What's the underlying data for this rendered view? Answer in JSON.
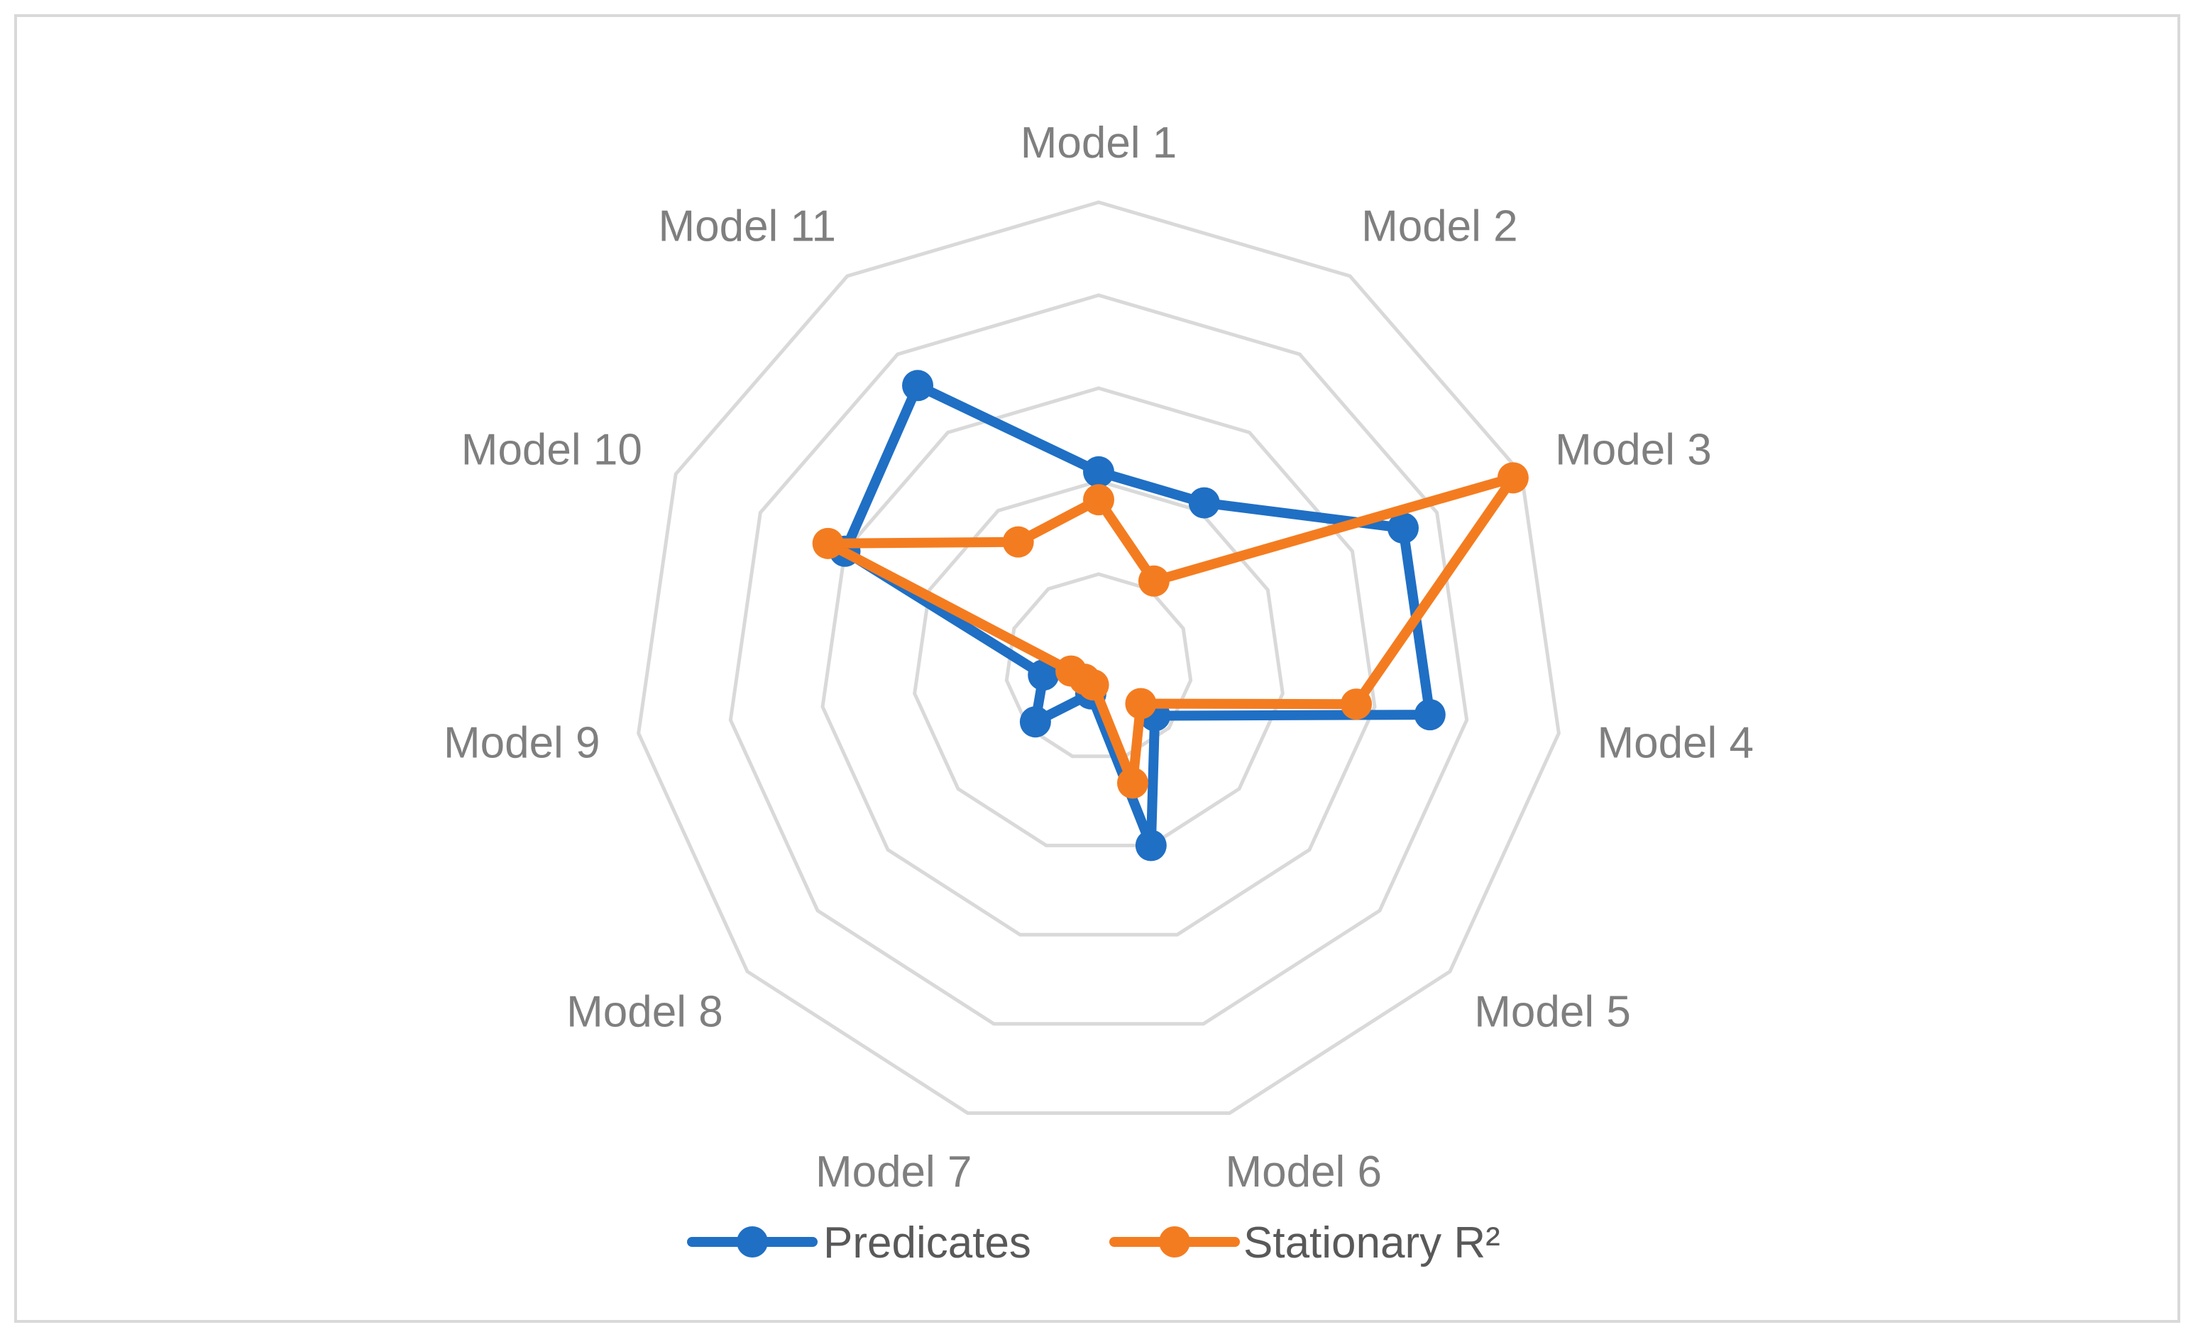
{
  "chart_data": {
    "type": "radar",
    "categories": [
      "Model 1",
      "Model 2",
      "Model 3",
      "Model 4",
      "Model 5",
      "Model 6",
      "Model 7",
      "Model 8",
      "Model 9",
      "Model 10",
      "Model 11"
    ],
    "rings": 5,
    "grid": true,
    "legend_position": "bottom",
    "series": [
      {
        "name": "Predicates",
        "color": "#1f6fc4",
        "values": [
          2.1,
          2.1,
          3.6,
          3.6,
          0.8,
          2.0,
          0.3,
          0.9,
          0.6,
          3.0,
          3.6
        ]
      },
      {
        "name": "Stationary R²",
        "color": "#f47c20",
        "values": [
          1.8,
          1.1,
          4.9,
          2.8,
          0.6,
          1.3,
          0.2,
          0.2,
          0.3,
          3.2,
          1.6
        ]
      }
    ]
  }
}
